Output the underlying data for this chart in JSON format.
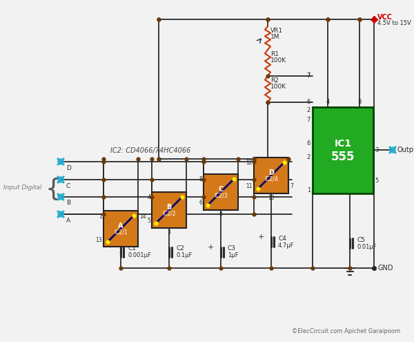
{
  "bg_color": "#f2f2f2",
  "wire_color": "#2a2a2a",
  "orange_color": "#D4791A",
  "green_color": "#22aa22",
  "red_color": "#cc0000",
  "cyan_color": "#22aacc",
  "node_color": "#6B3A0A",
  "resistor_color": "#cc3300",
  "copyright": "©ElecCircuit.com Apichet Garaipoom",
  "ic2_label": "IC2: CD4066/74HC4066",
  "ic1_label1": "IC1",
  "ic1_label2": "555",
  "vcc_label": "VCC",
  "vcc_range": "4.5V to 15V",
  "gnd_label": "GND",
  "output_label": "Output",
  "input_label": "Input Digital",
  "vr1_label": "VR1",
  "vr1_val": "1M",
  "r1_label": "R1",
  "r1_val": "100K",
  "r2_label": "R2",
  "r2_val": "100K",
  "c1_label": "C1",
  "c1_val": "0.001μF",
  "c2_label": "C2",
  "c2_val": "0.1μF",
  "c3_label": "C3",
  "c3_val": "1μF",
  "c4_label": "C4",
  "c4_val": "4.7μF",
  "c5_label": "C5",
  "c5_val": "0.01μF"
}
